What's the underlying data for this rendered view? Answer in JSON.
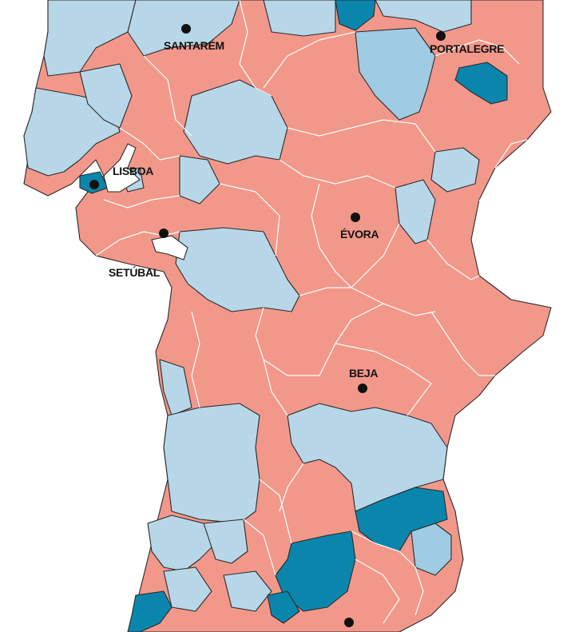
{
  "colors": {
    "salmon": "#f2988a",
    "light_blue": "#b7d7e8",
    "mid_blue": "#9fcbe3",
    "dark_blue": "#0a86ad",
    "border": "#2a2a2a",
    "background": "#ffffff"
  },
  "cities": [
    {
      "name": "SANTARÉM"
    },
    {
      "name": "PORTALEGRE"
    },
    {
      "name": "LISBOA"
    },
    {
      "name": "ÉVORA"
    },
    {
      "name": "SETÚBAL"
    },
    {
      "name": "BEJA"
    },
    {
      "name": ""
    }
  ]
}
